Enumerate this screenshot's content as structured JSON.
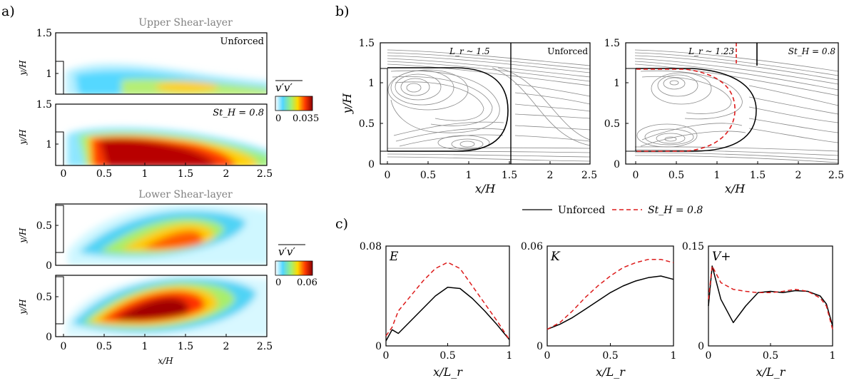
{
  "panel_labels": {
    "a": "a)",
    "b": "b)",
    "c": "c)"
  },
  "panel_a": {
    "upper_title": "Upper Shear-layer",
    "lower_title": "Lower Shear-layer",
    "unforced_label": "Unforced",
    "forced_label": "St_H = 0.8",
    "ylabel": "y/H",
    "xlabel": "x/H",
    "upper_yticks": [
      "1.5",
      "1",
      "1.5",
      "1"
    ],
    "lower_yticks": [
      "0.5",
      "0",
      "0.5",
      "0"
    ],
    "xticks": [
      "0",
      "0.5",
      "1",
      "1.5",
      "2",
      "2.5"
    ],
    "colorbar_upper": {
      "label": "v'v' (overline)",
      "min": "0",
      "max": "0.035"
    },
    "colorbar_lower": {
      "label": "v'v' (overline)",
      "min": "0",
      "max": "0.06"
    }
  },
  "panel_b": {
    "left_note": "L_r ~ 1.5",
    "left_title": "Unforced",
    "right_note": "L_r ~ 1.23",
    "right_title": "St_H = 0.8",
    "ylabel": "y/H",
    "xlabel": "x/H",
    "yticks": [
      "1.5",
      "1",
      "0.5",
      "0"
    ],
    "xticks": [
      "0",
      "0.5",
      "1",
      "1.5",
      "2",
      "2.5"
    ],
    "legend": {
      "unforced": "Unforced",
      "forced": "St_H = 0.8"
    }
  },
  "chart_data": [
    {
      "type": "line",
      "title": "E",
      "xlabel": "x/L_r",
      "ylim": [
        0,
        0.08
      ],
      "yticks": [
        "0",
        "0.08"
      ],
      "xticks": [
        "0",
        "0.5",
        "1"
      ],
      "x": [
        0,
        0.05,
        0.1,
        0.2,
        0.3,
        0.4,
        0.5,
        0.6,
        0.7,
        0.8,
        0.9,
        1.0
      ],
      "series": [
        {
          "name": "Unforced",
          "color": "#000000",
          "values": [
            0.004,
            0.013,
            0.01,
            0.02,
            0.03,
            0.04,
            0.047,
            0.046,
            0.038,
            0.028,
            0.017,
            0.005
          ]
        },
        {
          "name": "St_H = 0.8",
          "color": "#dd1c1c",
          "values": [
            0.008,
            0.015,
            0.028,
            0.04,
            0.052,
            0.062,
            0.067,
            0.062,
            0.048,
            0.034,
            0.02,
            0.005
          ]
        }
      ]
    },
    {
      "type": "line",
      "title": "K",
      "xlabel": "x/L_r",
      "ylim": [
        0,
        0.06
      ],
      "yticks": [
        "0",
        "0.06"
      ],
      "xticks": [
        "0",
        "0.5",
        "1"
      ],
      "x": [
        0,
        0.1,
        0.2,
        0.3,
        0.4,
        0.5,
        0.6,
        0.7,
        0.8,
        0.9,
        1.0
      ],
      "series": [
        {
          "name": "Unforced",
          "color": "#000000",
          "values": [
            0.01,
            0.013,
            0.017,
            0.022,
            0.027,
            0.032,
            0.036,
            0.039,
            0.041,
            0.042,
            0.04
          ]
        },
        {
          "name": "St_H = 0.8",
          "color": "#dd1c1c",
          "values": [
            0.01,
            0.014,
            0.021,
            0.029,
            0.036,
            0.042,
            0.047,
            0.05,
            0.052,
            0.052,
            0.05
          ]
        }
      ]
    },
    {
      "type": "line",
      "title": "V+",
      "xlabel": "x/L_r",
      "ylim": [
        0,
        0.15
      ],
      "yticks": [
        "0",
        "0.15"
      ],
      "xticks": [
        "0",
        "0.5",
        "1"
      ],
      "x": [
        0,
        0.03,
        0.1,
        0.2,
        0.3,
        0.4,
        0.5,
        0.6,
        0.7,
        0.8,
        0.9,
        0.95,
        1.0
      ],
      "series": [
        {
          "name": "Unforced",
          "color": "#000000",
          "values": [
            0.06,
            0.12,
            0.07,
            0.035,
            0.06,
            0.08,
            0.082,
            0.08,
            0.083,
            0.082,
            0.075,
            0.063,
            0.03
          ]
        },
        {
          "name": "St_H = 0.8",
          "color": "#dd1c1c",
          "values": [
            0.07,
            0.12,
            0.095,
            0.085,
            0.082,
            0.08,
            0.08,
            0.082,
            0.085,
            0.082,
            0.072,
            0.06,
            0.025
          ]
        }
      ]
    }
  ]
}
